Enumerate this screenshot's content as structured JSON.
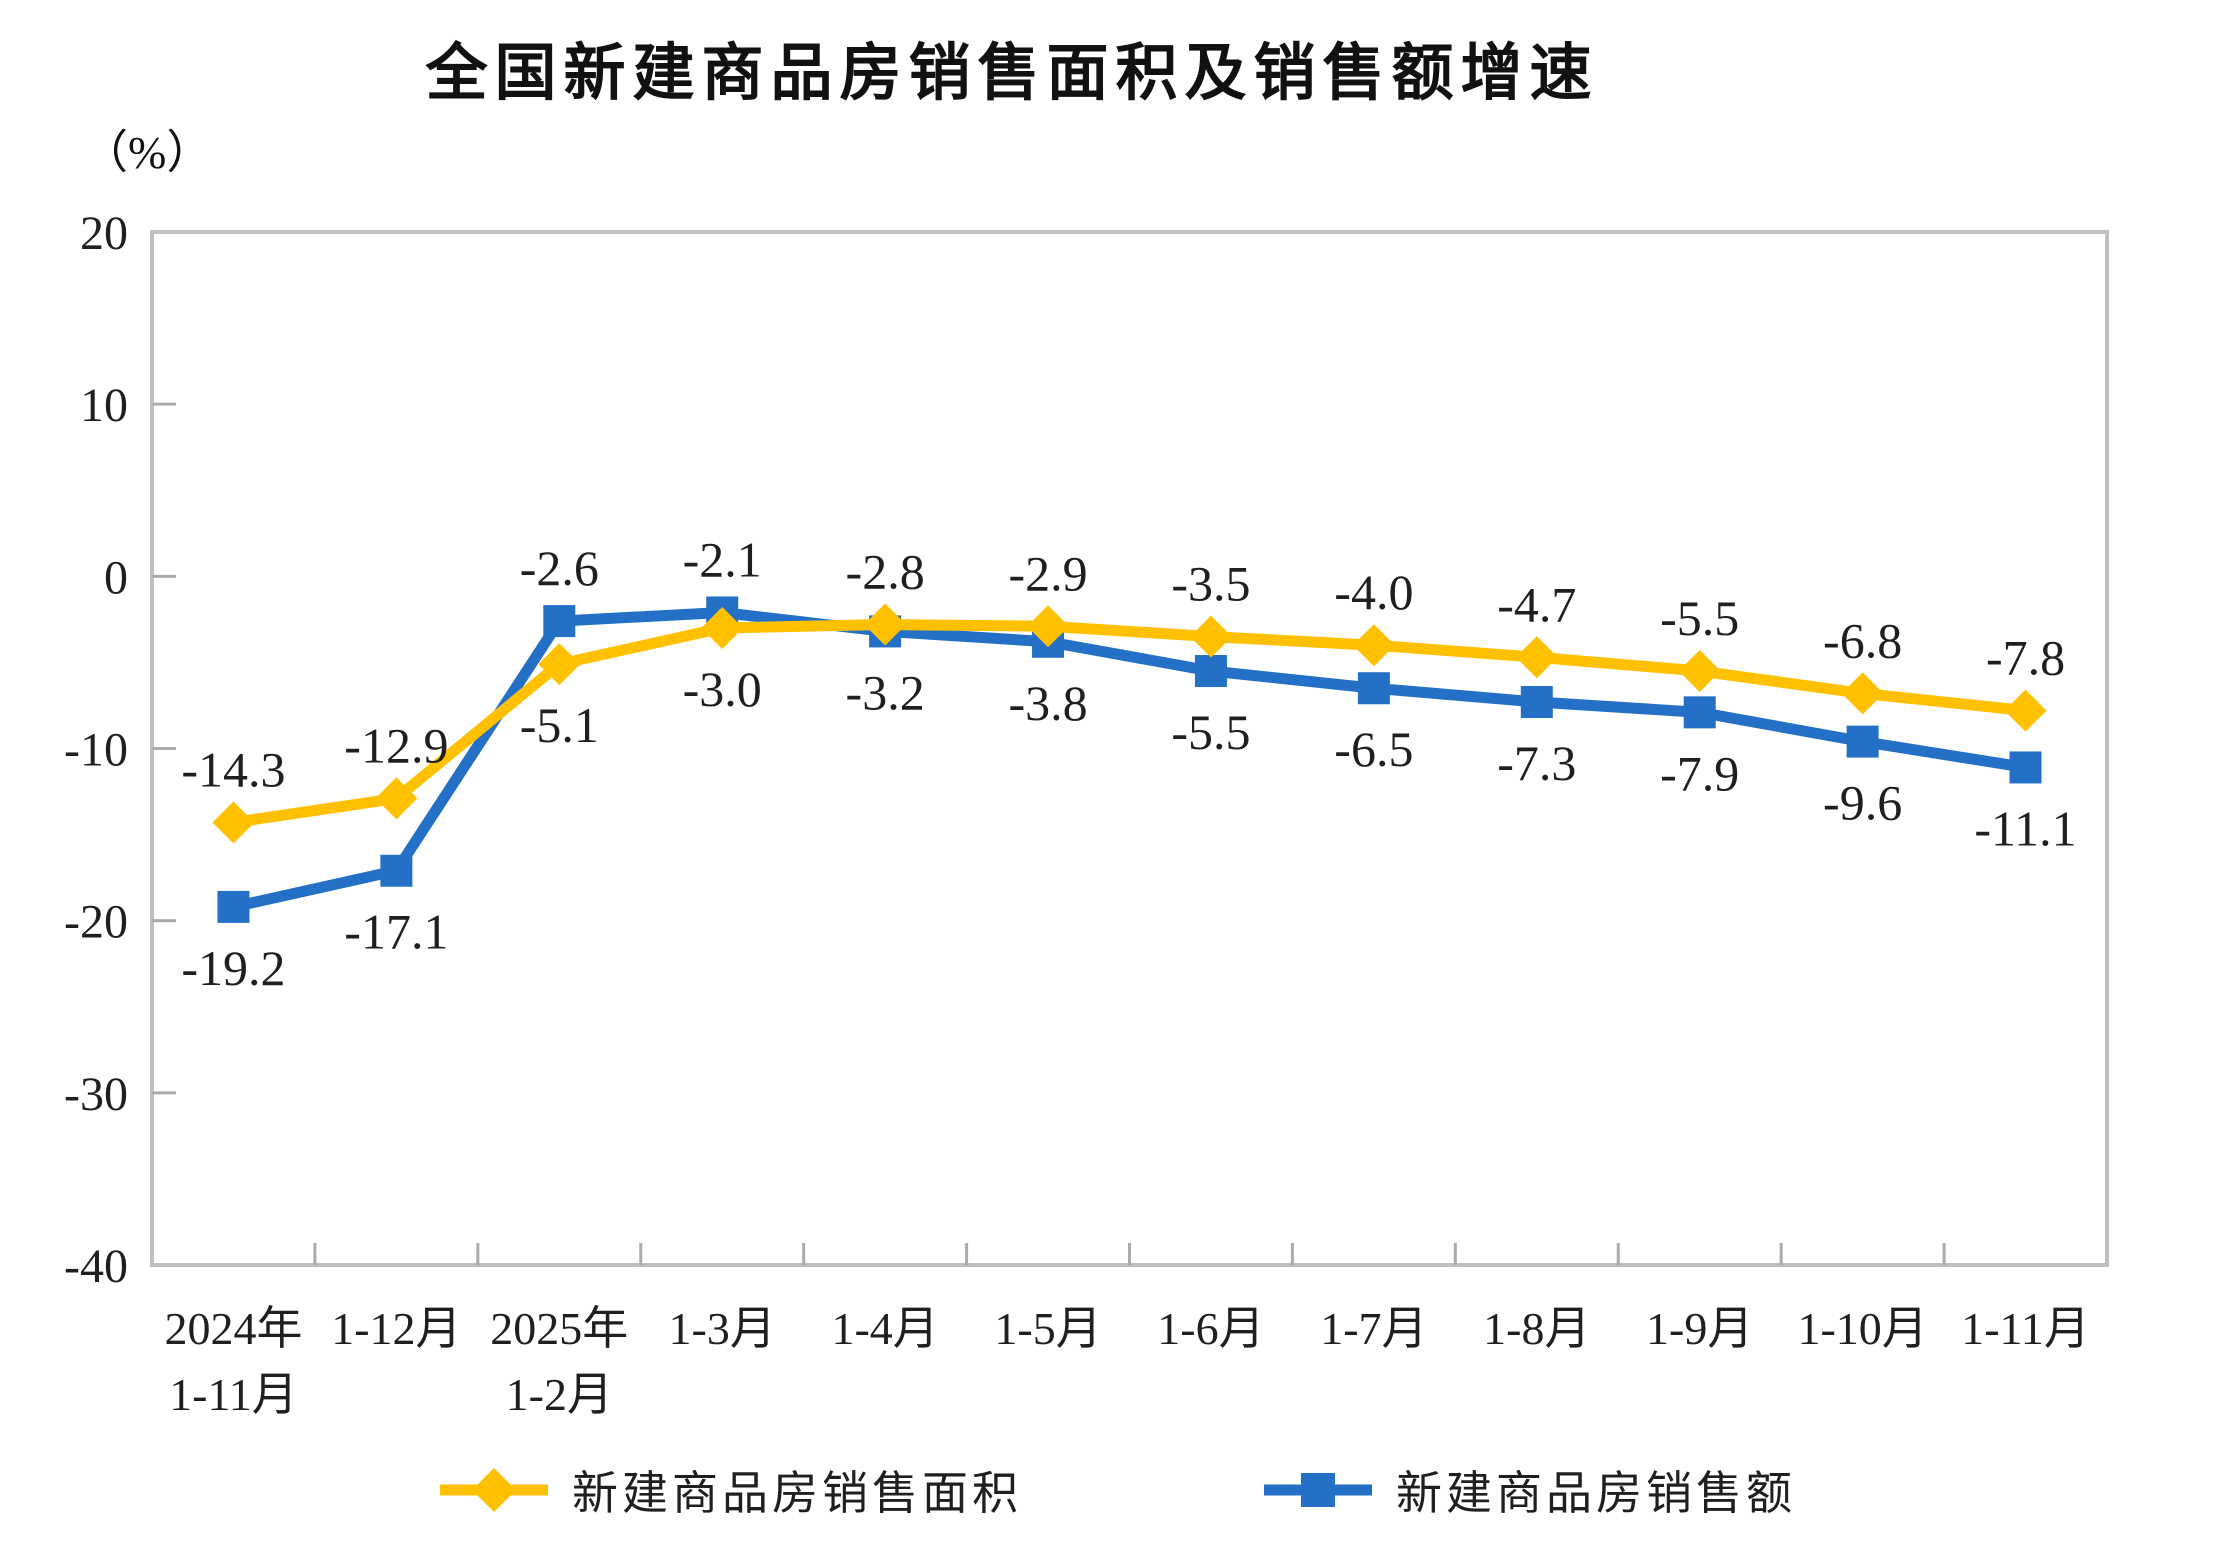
{
  "page": {
    "background": "#ffffff"
  },
  "chart_data": {
    "type": "line",
    "title": "全国新建商品房销售面积及销售额增速",
    "unit_label": "（%）",
    "categories": [
      [
        "2024年",
        "1-11月"
      ],
      [
        "1-12月"
      ],
      [
        "2025年",
        "1-2月"
      ],
      [
        "1-3月"
      ],
      [
        "1-4月"
      ],
      [
        "1-5月"
      ],
      [
        "1-6月"
      ],
      [
        "1-7月"
      ],
      [
        "1-8月"
      ],
      [
        "1-9月"
      ],
      [
        "1-10月"
      ],
      [
        "1-11月"
      ]
    ],
    "yticks": [
      20,
      10,
      0,
      -10,
      -20,
      -30,
      -40
    ],
    "ylim": [
      -40,
      20
    ],
    "grid": false,
    "legend_position": "bottom",
    "axis_color": "#BFBFBF",
    "tick_color": "#ABABAB",
    "text_color": "#1f1f1f",
    "series": [
      {
        "name": "新建商品房销售面积",
        "marker": "diamond",
        "color": "#FFC000",
        "values": [
          -14.3,
          -12.9,
          -5.1,
          -3.0,
          -2.8,
          -2.9,
          -3.5,
          -4.0,
          -4.7,
          -5.5,
          -6.8,
          -7.8
        ]
      },
      {
        "name": "新建商品房销售额",
        "marker": "square",
        "color": "#2470C6",
        "values": [
          -19.2,
          -17.1,
          -2.6,
          -2.1,
          -3.2,
          -3.8,
          -5.5,
          -6.5,
          -7.3,
          -7.9,
          -9.6,
          -11.1
        ]
      }
    ]
  }
}
